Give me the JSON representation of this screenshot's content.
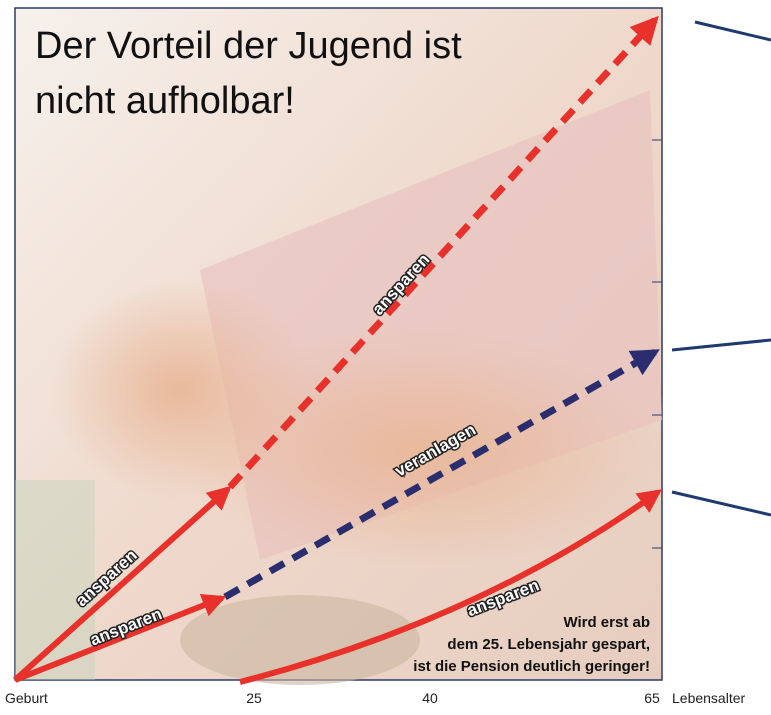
{
  "title": [
    "Der Vorteil der Jugend ist",
    "nicht aufholbar!"
  ],
  "axis": {
    "start": "Geburt",
    "ticks": [
      "25",
      "40",
      "65"
    ],
    "label": "Lebensalter"
  },
  "arrows": {
    "early_save": "ansparen",
    "late_save_start": "ansparen",
    "early_growth": "ansparen",
    "invest": "veranlagen",
    "late_save": "ansparen"
  },
  "note": [
    "Wird erst ab",
    "dem 25. Lebensjahr gespart,",
    "ist die Pension deutlich geringer!"
  ]
}
